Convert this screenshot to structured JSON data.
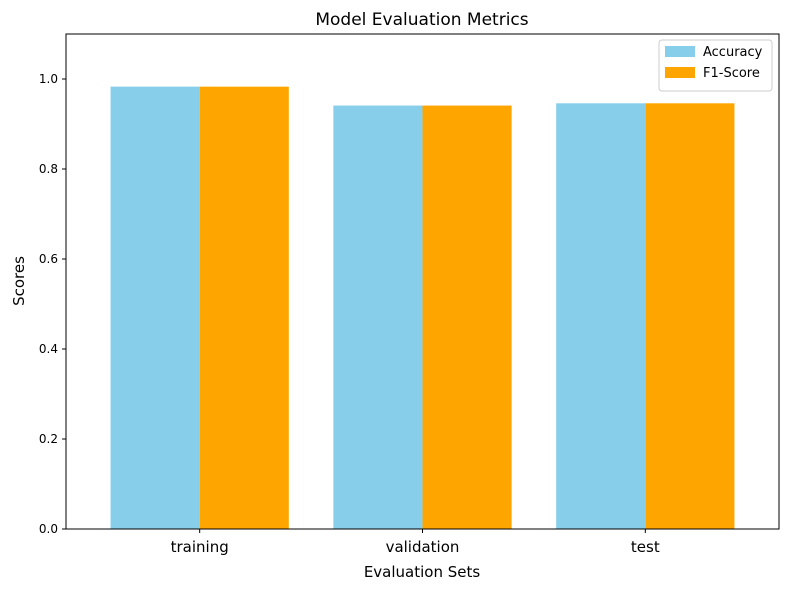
{
  "chart_data": {
    "type": "bar",
    "title": "Model Evaluation Metrics",
    "xlabel": "Evaluation Sets",
    "ylabel": "Scores",
    "categories": [
      "training",
      "validation",
      "test"
    ],
    "series": [
      {
        "name": "Accuracy",
        "color": "#87CEEB",
        "values": [
          0.983,
          0.941,
          0.946
        ]
      },
      {
        "name": "F1-Score",
        "color": "#FFA500",
        "values": [
          0.983,
          0.941,
          0.946
        ]
      }
    ],
    "ylim": [
      0,
      1.1
    ],
    "yticks": [
      "0.0",
      "0.2",
      "0.4",
      "0.6",
      "0.8",
      "1.0"
    ],
    "grid": false,
    "legend_position": "top-right"
  }
}
